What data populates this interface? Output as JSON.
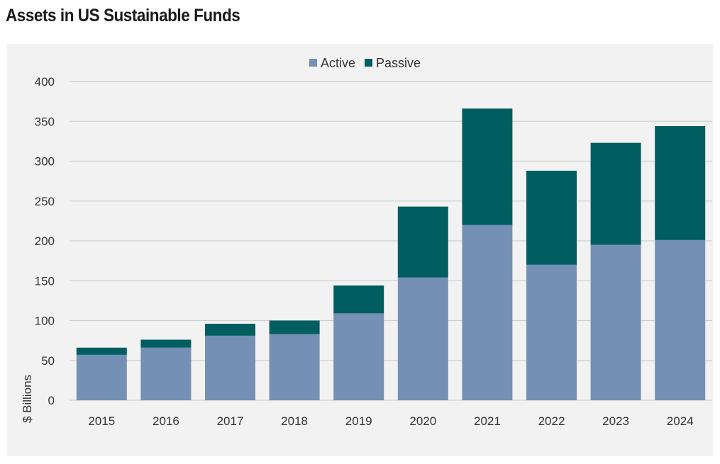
{
  "chart_data": {
    "type": "bar",
    "stacked": true,
    "title": "Assets in US Sustainable Funds",
    "ylabel": "$ Billions",
    "xlabel": "",
    "ylim": [
      0,
      400
    ],
    "yticks": [
      0,
      50,
      100,
      150,
      200,
      250,
      300,
      350,
      400
    ],
    "grid": true,
    "legend_position": "top-center",
    "categories": [
      "2015",
      "2016",
      "2017",
      "2018",
      "2019",
      "2020",
      "2021",
      "2022",
      "2023",
      "2024"
    ],
    "series": [
      {
        "name": "Active",
        "color": "#7490b4",
        "values": [
          57,
          66,
          81,
          83,
          109,
          154,
          220,
          170,
          195,
          201
        ]
      },
      {
        "name": "Passive",
        "color": "#005e61",
        "values": [
          9,
          10,
          15,
          17,
          35,
          89,
          146,
          118,
          128,
          143
        ]
      }
    ]
  }
}
